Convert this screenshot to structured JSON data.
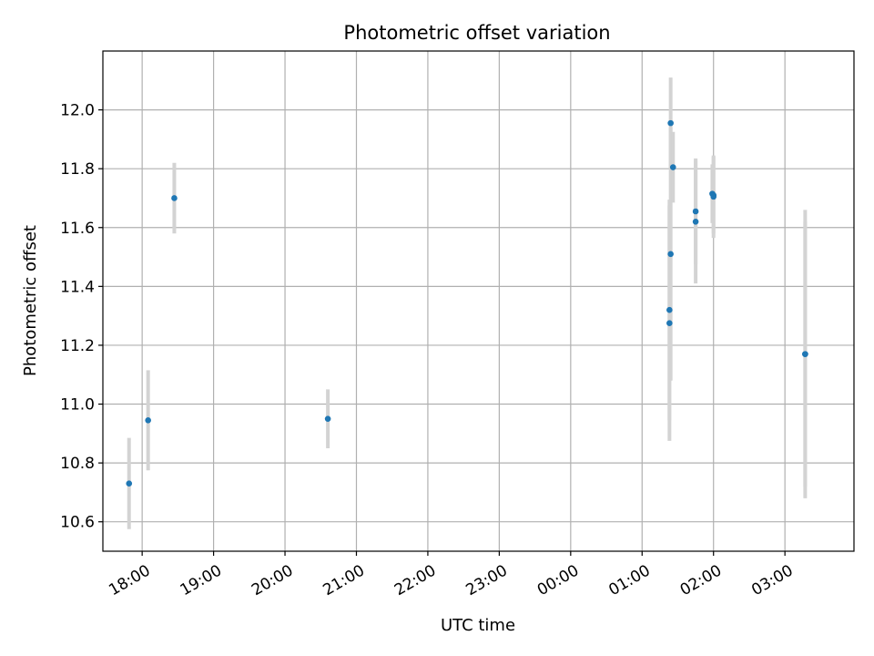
{
  "chart_data": {
    "type": "scatter",
    "title": "Photometric offset variation",
    "xlabel": "UTC time",
    "ylabel": "Photometric offset",
    "grid": true,
    "x_ticks": [
      "18:00",
      "19:00",
      "20:00",
      "21:00",
      "22:00",
      "23:00",
      "00:00",
      "01:00",
      "02:00",
      "03:00"
    ],
    "y_ticks": [
      "10.6",
      "10.8",
      "11.0",
      "11.2",
      "11.4",
      "11.6",
      "11.8",
      "12.0"
    ],
    "xlim": [
      "17:27",
      "03:58"
    ],
    "ylim": [
      10.5,
      12.2
    ],
    "series": [
      {
        "marker_color": "#1f77b4",
        "errorbar_color": "#d3d3d3",
        "points": [
          {
            "x": "17:49",
            "y": 10.73,
            "err": 0.155
          },
          {
            "x": "18:05",
            "y": 10.945,
            "err": 0.17
          },
          {
            "x": "18:27",
            "y": 11.7,
            "err": 0.12
          },
          {
            "x": "20:36",
            "y": 10.95,
            "err": 0.1
          },
          {
            "x": "01:23",
            "y": 11.32,
            "err": 0.375
          },
          {
            "x": "01:23",
            "y": 11.275,
            "err": 0.4
          },
          {
            "x": "01:24",
            "y": 11.51,
            "err": 0.43
          },
          {
            "x": "01:24",
            "y": 11.955,
            "err": 0.155
          },
          {
            "x": "01:26",
            "y": 11.805,
            "err": 0.12
          },
          {
            "x": "01:45",
            "y": 11.655,
            "err": 0.18
          },
          {
            "x": "01:45",
            "y": 11.62,
            "err": 0.21
          },
          {
            "x": "01:59",
            "y": 11.715,
            "err": 0.1
          },
          {
            "x": "02:00",
            "y": 11.71,
            "err": 0.13
          },
          {
            "x": "02:00",
            "y": 11.705,
            "err": 0.14
          },
          {
            "x": "03:17",
            "y": 11.17,
            "err": 0.49
          },
          {
            "x": "03:17",
            "y": 11.17,
            "err": 0.45
          }
        ]
      }
    ]
  }
}
